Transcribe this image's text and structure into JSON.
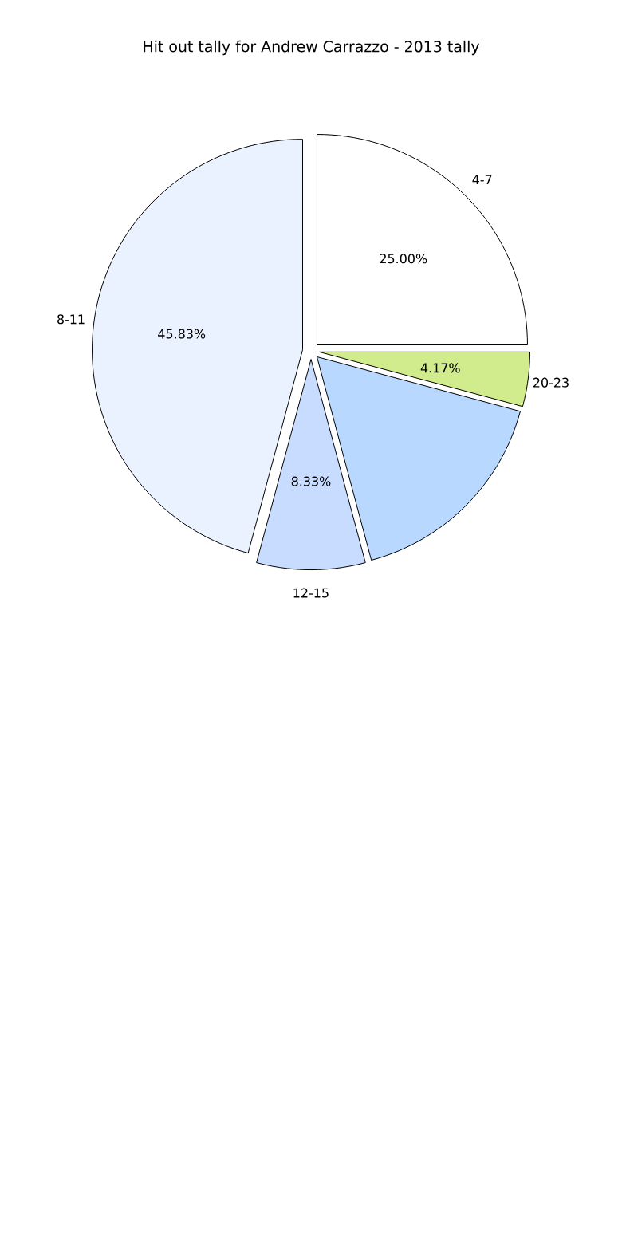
{
  "chart_data": {
    "type": "pie",
    "title": "Hit out tally for Andrew Carrazzo - 2013 tally",
    "categories": [
      "4-7",
      "20-23",
      null,
      "12-15",
      "8-11"
    ],
    "values": [
      25.0,
      4.17,
      16.67,
      8.33,
      45.83
    ],
    "colors": [
      "#ffffff",
      "#d0ec8c",
      "#b8d8ff",
      "#c8dcff",
      "#eaf1ff"
    ],
    "value_labels": [
      "25.00%",
      "4.17%",
      null,
      "8.33%",
      "45.83%"
    ]
  }
}
